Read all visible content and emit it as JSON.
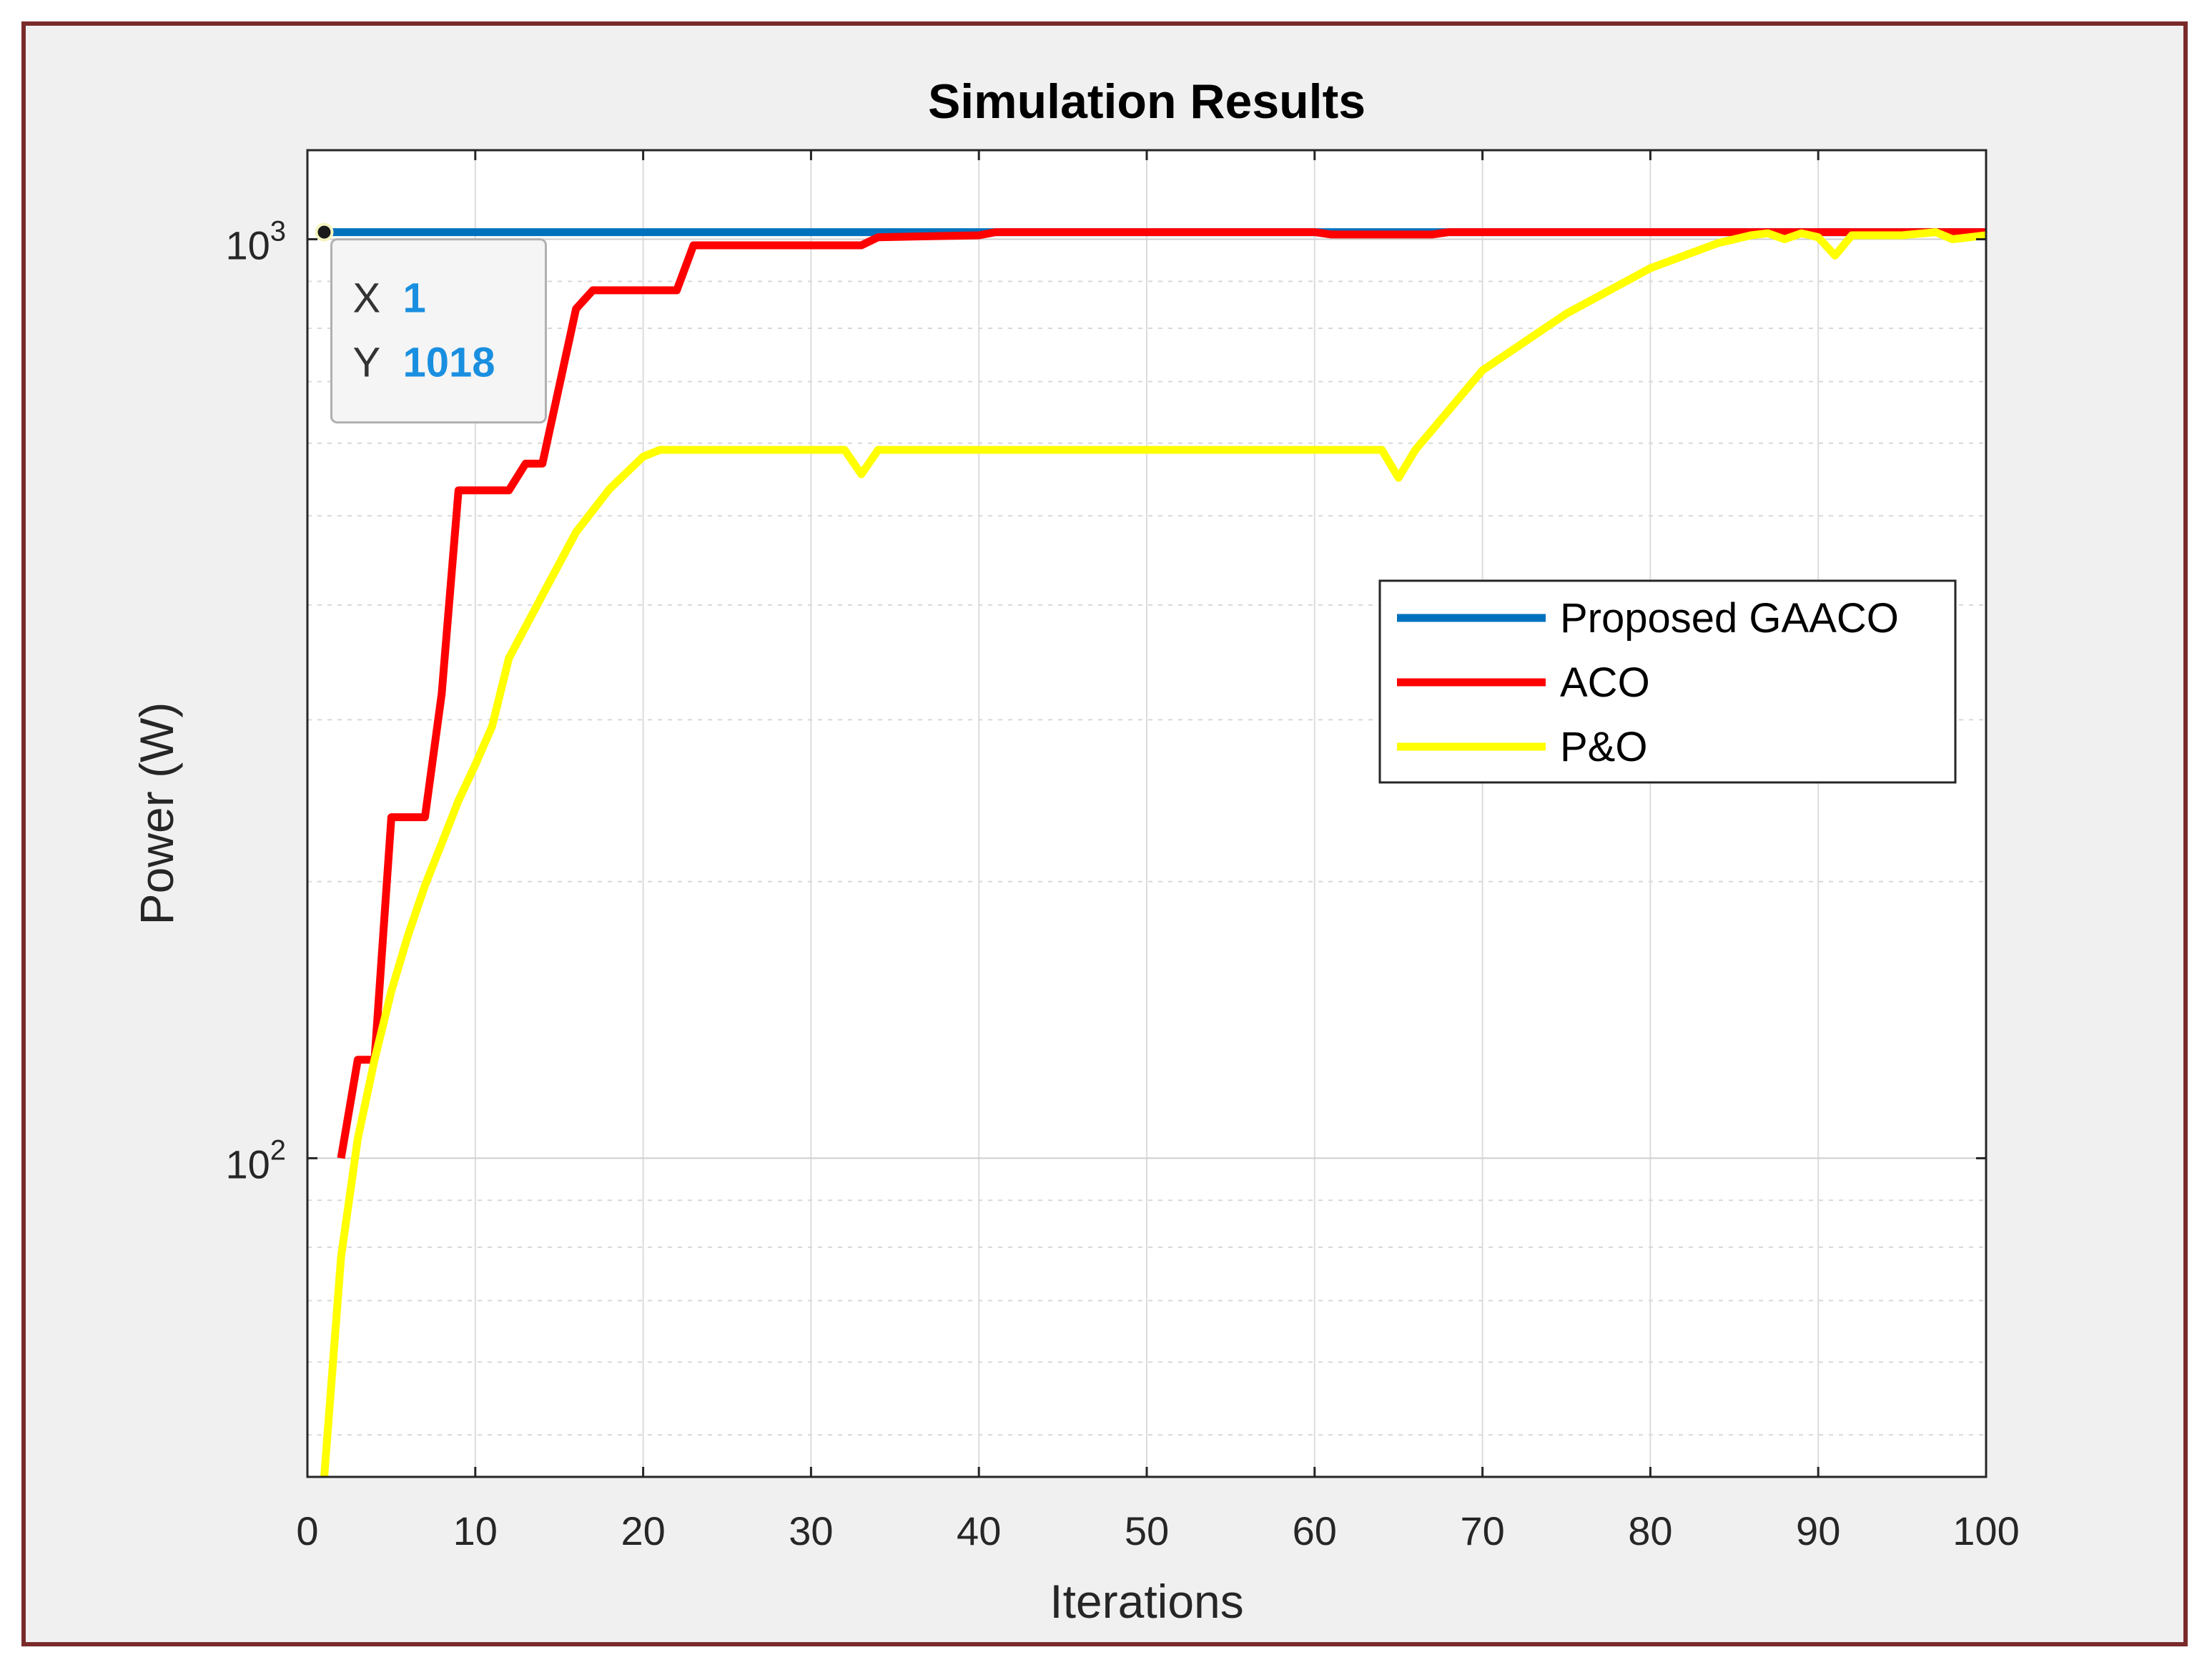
{
  "chart_data": {
    "type": "line",
    "title": "Simulation Results",
    "xlabel": "Iterations",
    "ylabel": "Power (W)",
    "xlim": [
      0,
      100
    ],
    "ylim": [
      45,
      1250
    ],
    "yscale": "log",
    "grid": true,
    "xticks": [
      0,
      10,
      20,
      30,
      40,
      50,
      60,
      70,
      80,
      90,
      100
    ],
    "xtick_labels": [
      "0",
      "10",
      "20",
      "30",
      "40",
      "50",
      "60",
      "70",
      "80",
      "90",
      "100"
    ],
    "yticks": [
      {
        "value": 100,
        "base": "10",
        "exp": "2"
      },
      {
        "value": 1000,
        "base": "10",
        "exp": "3"
      }
    ],
    "legend_position": "center-right",
    "series": [
      {
        "name": "Proposed GAACO",
        "color": "#0072BD",
        "x": [
          1,
          100
        ],
        "y": [
          1018,
          1018
        ]
      },
      {
        "name": "ACO",
        "color": "#FF0000",
        "x": [
          2,
          3,
          4,
          5,
          7,
          8,
          9,
          12,
          13,
          14,
          16,
          17,
          22,
          23,
          33,
          34,
          40,
          41,
          60,
          61,
          67,
          68,
          100
        ],
        "y": [
          100,
          128,
          128,
          235,
          235,
          320,
          533,
          533,
          570,
          570,
          840,
          880,
          880,
          985,
          985,
          1005,
          1010,
          1018,
          1018,
          1012,
          1012,
          1018,
          1018
        ]
      },
      {
        "name": "P&O",
        "color": "#FFFF00",
        "x": [
          1,
          2,
          3,
          4,
          5,
          6,
          7,
          8,
          9,
          10,
          11,
          12,
          14,
          16,
          18,
          20,
          21,
          32,
          33,
          34,
          64,
          65,
          66,
          70,
          75,
          80,
          84,
          86,
          87,
          88,
          89,
          90,
          91,
          92,
          95,
          97,
          98,
          100
        ],
        "y": [
          45,
          78,
          105,
          128,
          152,
          175,
          198,
          220,
          245,
          268,
          295,
          350,
          410,
          480,
          535,
          580,
          590,
          590,
          555,
          590,
          590,
          550,
          590,
          720,
          830,
          930,
          990,
          1010,
          1015,
          1000,
          1015,
          1005,
          960,
          1010,
          1010,
          1018,
          1000,
          1010
        ]
      }
    ],
    "datatip": {
      "x_key": "X",
      "x_value": "1",
      "y_key": "Y",
      "y_value": "1018",
      "point_x": 1,
      "point_y": 1018
    }
  }
}
